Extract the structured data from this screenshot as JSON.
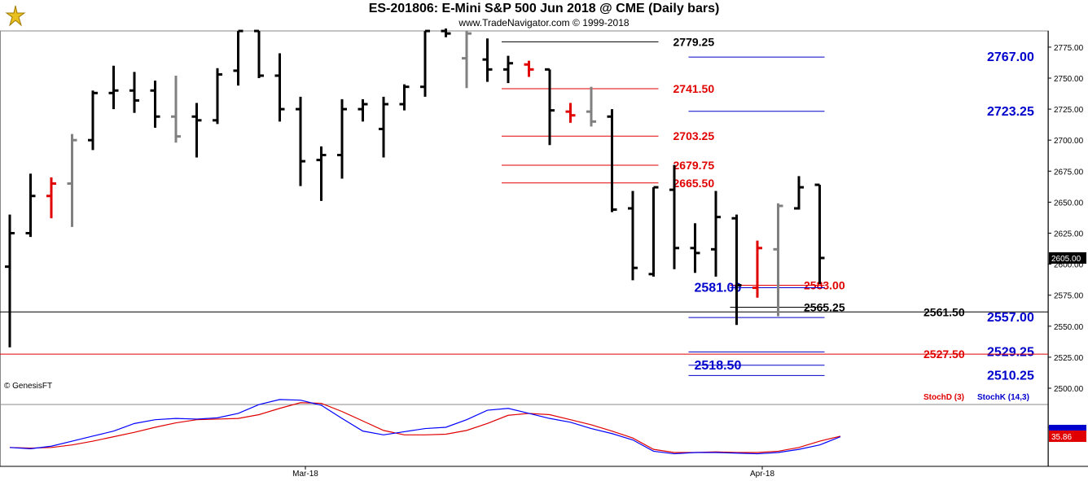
{
  "header": {
    "title": "ES-201806:  E-Mini S&P 500 Jun 2018 @ CME  (Daily bars)",
    "subtitle": "www.TradeNavigator.com © 1999-2018"
  },
  "footer": {
    "copyright": "© GenesisFT",
    "stoch_d_label": "StochD (3)",
    "stoch_k_label": "StochK (14,3)"
  },
  "colors": {
    "up_bar": "#000000",
    "down_bar": "#000000",
    "inside_bar": "#808080",
    "signal_bar": "#e00000",
    "resistance": "#e00000",
    "support_blue": "#0000cc",
    "neutral": "#000000",
    "stoch_k": "#0000ff",
    "stoch_d": "#e00000"
  },
  "chart_data": [
    {
      "type": "bar",
      "subtype": "ohlc",
      "title": "ES-201806:  E-Mini S&P 500 Jun 2018 @ CME  (Daily bars)",
      "ylim": [
        2485,
        2790
      ],
      "y_ticks": [
        2500,
        2525,
        2550,
        2575,
        2600,
        2625,
        2650,
        2675,
        2700,
        2725,
        2750,
        2775
      ],
      "x_labels": [
        {
          "bar_index": 14,
          "label": "Mar-18"
        },
        {
          "bar_index": 36,
          "label": "Apr-18"
        }
      ],
      "last_price": "2605.00",
      "bars": [
        {
          "o": 2598,
          "h": 2640,
          "l": 2533,
          "c": 2625,
          "k": "up"
        },
        {
          "o": 2625,
          "h": 2673,
          "l": 2622,
          "c": 2655,
          "k": "up"
        },
        {
          "o": 2655,
          "h": 2670,
          "l": 2637,
          "c": 2665,
          "k": "signal"
        },
        {
          "o": 2665,
          "h": 2705,
          "l": 2630,
          "c": 2700,
          "k": "inside"
        },
        {
          "o": 2700,
          "h": 2740,
          "l": 2692,
          "c": 2738,
          "k": "up"
        },
        {
          "o": 2738,
          "h": 2760,
          "l": 2725,
          "c": 2740,
          "k": "up"
        },
        {
          "o": 2740,
          "h": 2755,
          "l": 2722,
          "c": 2732,
          "k": "up"
        },
        {
          "o": 2740,
          "h": 2748,
          "l": 2710,
          "c": 2719,
          "k": "down"
        },
        {
          "o": 2719,
          "h": 2752,
          "l": 2698,
          "c": 2703,
          "k": "inside"
        },
        {
          "o": 2719,
          "h": 2730,
          "l": 2686,
          "c": 2716,
          "k": "down"
        },
        {
          "o": 2716,
          "h": 2758,
          "l": 2713,
          "c": 2753,
          "k": "up"
        },
        {
          "o": 2756,
          "h": 2788,
          "l": 2744,
          "c": 2788,
          "k": "up"
        },
        {
          "o": 2788,
          "h": 2788,
          "l": 2750,
          "c": 2752,
          "k": "down"
        },
        {
          "o": 2752,
          "h": 2770,
          "l": 2715,
          "c": 2725,
          "k": "down"
        },
        {
          "o": 2725,
          "h": 2735,
          "l": 2663,
          "c": 2683,
          "k": "down"
        },
        {
          "o": 2684,
          "h": 2695,
          "l": 2651,
          "c": 2688,
          "k": "up"
        },
        {
          "o": 2688,
          "h": 2733,
          "l": 2669,
          "c": 2725,
          "k": "up"
        },
        {
          "o": 2725,
          "h": 2733,
          "l": 2715,
          "c": 2729,
          "k": "up"
        },
        {
          "o": 2709,
          "h": 2735,
          "l": 2686,
          "c": 2729,
          "k": "up"
        },
        {
          "o": 2729,
          "h": 2745,
          "l": 2724,
          "c": 2743,
          "k": "up"
        },
        {
          "o": 2743,
          "h": 2788,
          "l": 2735,
          "c": 2788,
          "k": "up"
        },
        {
          "o": 2788,
          "h": 2790,
          "l": 2783,
          "c": 2786,
          "k": "up"
        },
        {
          "o": 2766,
          "h": 2788,
          "l": 2742,
          "c": 2786,
          "k": "inside"
        },
        {
          "o": 2765,
          "h": 2782,
          "l": 2747,
          "c": 2757,
          "k": "down"
        },
        {
          "o": 2757,
          "h": 2768,
          "l": 2746,
          "c": 2762,
          "k": "up"
        },
        {
          "o": 2761,
          "h": 2764,
          "l": 2751,
          "c": 2757,
          "k": "signal"
        },
        {
          "o": 2757,
          "h": 2757,
          "l": 2696,
          "c": 2724,
          "k": "down"
        },
        {
          "o": 2723,
          "h": 2730,
          "l": 2714,
          "c": 2720,
          "k": "signal"
        },
        {
          "o": 2723,
          "h": 2743,
          "l": 2711,
          "c": 2715,
          "k": "inside"
        },
        {
          "o": 2719,
          "h": 2725,
          "l": 2642,
          "c": 2644,
          "k": "down"
        },
        {
          "o": 2645,
          "h": 2659,
          "l": 2587,
          "c": 2597,
          "k": "down"
        },
        {
          "o": 2592,
          "h": 2662,
          "l": 2590,
          "c": 2662,
          "k": "up"
        },
        {
          "o": 2660,
          "h": 2680,
          "l": 2596,
          "c": 2613,
          "k": "down"
        },
        {
          "o": 2613,
          "h": 2633,
          "l": 2593,
          "c": 2609,
          "k": "down"
        },
        {
          "o": 2612,
          "h": 2659,
          "l": 2590,
          "c": 2638,
          "k": "up"
        },
        {
          "o": 2637,
          "h": 2640,
          "l": 2551,
          "c": 2583,
          "k": "down"
        },
        {
          "o": 2581,
          "h": 2619,
          "l": 2573,
          "c": 2613,
          "k": "signal"
        },
        {
          "o": 2612,
          "h": 2649,
          "l": 2558,
          "c": 2647,
          "k": "inside"
        },
        {
          "o": 2645,
          "h": 2671,
          "l": 2644,
          "c": 2662,
          "k": "up"
        },
        {
          "o": 2664,
          "h": 2664,
          "l": 2584,
          "c": 2605,
          "k": "down"
        }
      ]
    },
    {
      "type": "line",
      "title": "Stochastic",
      "ylim": [
        0,
        100
      ],
      "y_ticks": [
        50
      ],
      "last_value": "35.86",
      "series": [
        {
          "name": "StochD (3)",
          "role": "d",
          "values": [
            18,
            17,
            18,
            22,
            28,
            35,
            42,
            50,
            57,
            62,
            63,
            64,
            70,
            80,
            89,
            88,
            75,
            60,
            45,
            38,
            38,
            39,
            45,
            56,
            69,
            72,
            70,
            62,
            54,
            44,
            33,
            15,
            10,
            10,
            11,
            10,
            10,
            12,
            18,
            28,
            35.86
          ]
        },
        {
          "name": "StochK (14,3)",
          "role": "k",
          "values": [
            18,
            16,
            20,
            28,
            36,
            44,
            56,
            62,
            64,
            63,
            65,
            72,
            86,
            94,
            93,
            85,
            64,
            44,
            38,
            43,
            48,
            50,
            62,
            77,
            80,
            72,
            64,
            58,
            48,
            40,
            30,
            12,
            8,
            10,
            10,
            9,
            8,
            10,
            15,
            22,
            35
          ]
        }
      ]
    }
  ],
  "levels": [
    {
      "value": "2779.25",
      "color": "black",
      "x0": 24,
      "x1": 31,
      "label_pos": "right"
    },
    {
      "value": "2767.00",
      "color": "blue",
      "x0": 33,
      "x1": 39,
      "label_pos": "far"
    },
    {
      "value": "2741.50",
      "color": "red",
      "x0": 24,
      "x1": 31,
      "label_pos": "right"
    },
    {
      "value": "2723.25",
      "color": "blue",
      "x0": 33,
      "x1": 39,
      "label_pos": "far"
    },
    {
      "value": "2703.25",
      "color": "red",
      "x0": 24,
      "x1": 31,
      "label_pos": "right"
    },
    {
      "value": "2679.75",
      "color": "red",
      "x0": 24,
      "x1": 31,
      "label_pos": "right"
    },
    {
      "value": "2665.50",
      "color": "red",
      "x0": 24,
      "x1": 31,
      "label_pos": "right"
    },
    {
      "value": "2583.00",
      "color": "red",
      "x0": 35,
      "x1": 39,
      "label_pos": "right"
    },
    {
      "value": "2581.00",
      "color": "blue",
      "x0": 35,
      "x1": 39,
      "label_pos": "left"
    },
    {
      "value": "2565.25",
      "color": "black",
      "x0": 35,
      "x1": 39,
      "label_pos": "right"
    },
    {
      "value": "2561.50",
      "color": "black",
      "x0": -1,
      "x1": 43,
      "label_pos": "mid"
    },
    {
      "value": "2557.00",
      "color": "blue",
      "x0": 33,
      "x1": 39,
      "label_pos": "far"
    },
    {
      "value": "2529.25",
      "color": "blue",
      "x0": 33,
      "x1": 39,
      "label_pos": "far"
    },
    {
      "value": "2527.50",
      "color": "red",
      "x0": -1,
      "x1": 43,
      "label_pos": "mid"
    },
    {
      "value": "2518.50",
      "color": "blue",
      "x0": 33,
      "x1": 39,
      "label_pos": "left"
    },
    {
      "value": "2510.25",
      "color": "blue",
      "x0": 33,
      "x1": 39,
      "label_pos": "far"
    }
  ]
}
